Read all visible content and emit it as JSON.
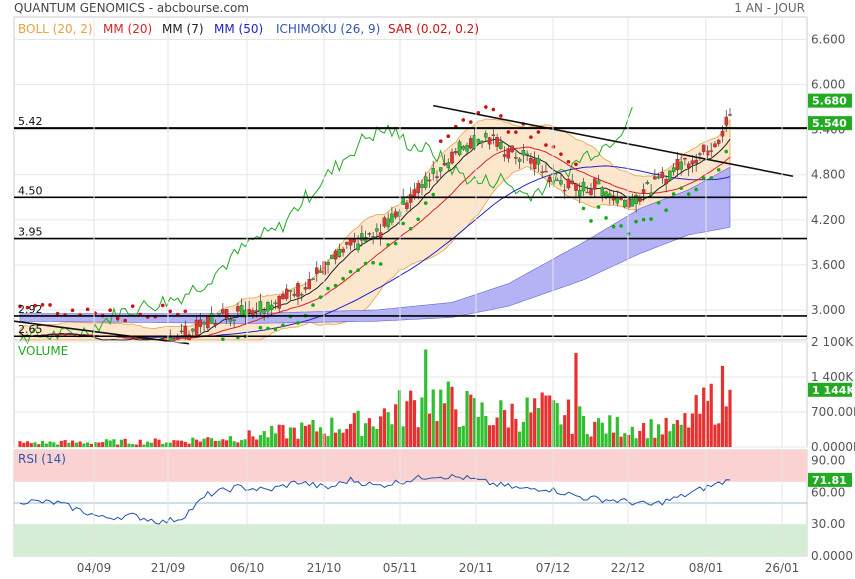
{
  "header": {
    "title": "QUANTUM GENOMICS - abcbourse.com",
    "period": "1 AN - JOUR"
  },
  "legend": [
    {
      "label": "BOLL (20, 2)",
      "color": "#e8a040"
    },
    {
      "label": "MM (20)",
      "color": "#dd2222"
    },
    {
      "label": "MM (7)",
      "color": "#222222"
    },
    {
      "label": "MM (50)",
      "color": "#2222cc"
    },
    {
      "label": "ICHIMOKU (26, 9)",
      "color": "#3355aa"
    },
    {
      "label": "SAR (0.02, 0.2)",
      "color": "#cc1111"
    }
  ],
  "colors": {
    "up": "#2fbf2f",
    "down": "#e83030",
    "boll_fill": "#fbe3c4",
    "cloud_fill": "#b3b3f5",
    "rsi_over": "#fad2d2",
    "rsi_under": "#d5ecd5",
    "tag_green": "#22aa22",
    "tag_black": "#000000"
  },
  "chart_data": {
    "type": "candlestick",
    "price_axis": {
      "ticks": [
        "6.600",
        "6.000",
        "5.400",
        "4.800",
        "4.200",
        "3.600",
        "3.000"
      ],
      "range": [
        2.6,
        6.9
      ]
    },
    "x_ticks": [
      "04/09",
      "21/09",
      "06/10",
      "21/10",
      "05/11",
      "20/11",
      "07/12",
      "22/12",
      "08/01",
      "26/01"
    ],
    "levels": [
      {
        "label": "5.42",
        "value": 5.42
      },
      {
        "label": "4.50",
        "value": 4.5
      },
      {
        "label": "3.95",
        "value": 3.95
      },
      {
        "label": "2.92",
        "value": 2.92
      },
      {
        "label": "2.65",
        "value": 2.65
      }
    ],
    "last_price_tags": [
      {
        "label": "5.680",
        "value": 5.68,
        "color": "green"
      },
      {
        "label": "5.540",
        "value": 5.54,
        "color": "green"
      }
    ],
    "volume": {
      "title": "VOLUME",
      "ticks": [
        "2 100K",
        "1 400K",
        "700.00K",
        "0.0000K"
      ],
      "range": [
        0,
        2100000
      ],
      "last_label": "1 144K"
    },
    "rsi": {
      "title": "RSI (14)",
      "ticks": [
        "90.00",
        "60.00",
        "30.00",
        "0.0000"
      ],
      "range": [
        0,
        100
      ],
      "over": 70,
      "under": 30,
      "last_label": "71.81"
    }
  }
}
